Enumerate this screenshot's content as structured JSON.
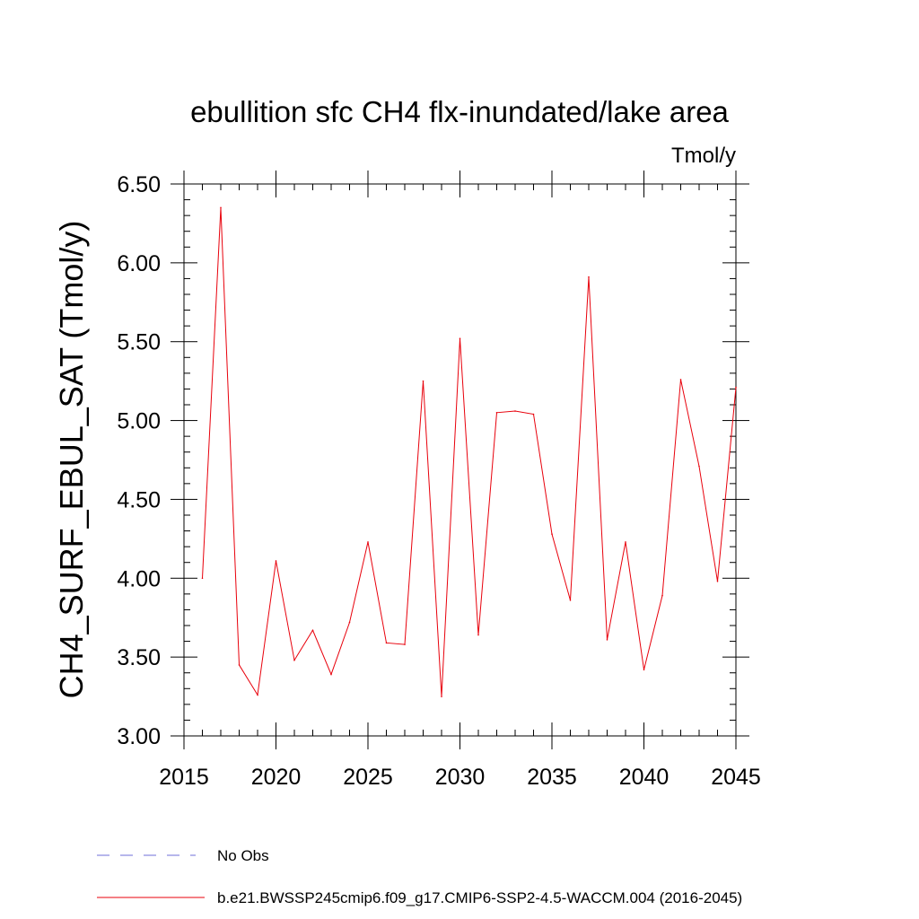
{
  "chart_data": {
    "type": "line",
    "title": "ebullition sfc CH4 flx-inundated/lake area",
    "units_label": "Tmol/y",
    "xlabel": "",
    "ylabel": "CH4_SURF_EBUL_SAT  (Tmol/y)",
    "xlim": [
      2015,
      2045
    ],
    "ylim": [
      3.0,
      6.5
    ],
    "x_ticks": [
      2015,
      2020,
      2025,
      2030,
      2035,
      2040,
      2045
    ],
    "x_tick_labels": [
      "2015",
      "2020",
      "2025",
      "2030",
      "2035",
      "2040",
      "2045"
    ],
    "y_ticks": [
      3.0,
      3.5,
      4.0,
      4.5,
      5.0,
      5.5,
      6.0,
      6.5
    ],
    "y_tick_labels": [
      "3.00",
      "3.50",
      "4.00",
      "4.50",
      "5.00",
      "5.50",
      "6.00",
      "6.50"
    ],
    "x_minor_step": 1,
    "y_minor_step": 0.1,
    "grid": false,
    "series": [
      {
        "name": "b.e21.BWSSP245cmip6.f09_g17.CMIP6-SSP2-4.5-WACCM.004 (2016-2045)",
        "color": "#e8000b",
        "style": "solid",
        "x": [
          2016,
          2017,
          2018,
          2019,
          2020,
          2021,
          2022,
          2023,
          2024,
          2025,
          2026,
          2027,
          2028,
          2029,
          2030,
          2031,
          2032,
          2033,
          2034,
          2035,
          2036,
          2037,
          2038,
          2039,
          2040,
          2041,
          2042,
          2043,
          2044,
          2045
        ],
        "values": [
          4.0,
          6.35,
          3.45,
          3.26,
          4.11,
          3.48,
          3.67,
          3.39,
          3.72,
          4.23,
          3.59,
          3.58,
          5.25,
          3.25,
          5.52,
          3.64,
          5.05,
          5.06,
          5.04,
          4.28,
          3.86,
          5.91,
          3.61,
          4.23,
          3.42,
          3.89,
          5.26,
          4.71,
          3.98,
          5.21
        ]
      }
    ],
    "legend": [
      {
        "label": "No Obs",
        "color": "#6f6fd8",
        "style": "dashed"
      },
      {
        "label": "b.e21.BWSSP245cmip6.f09_g17.CMIP6-SSP2-4.5-WACCM.004 (2016-2045)",
        "color": "#e8000b",
        "style": "solid"
      }
    ],
    "legend_placement": "bottom-left"
  }
}
